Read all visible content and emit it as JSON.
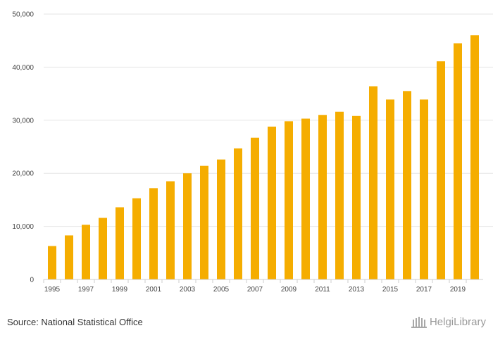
{
  "chart_data": {
    "type": "bar",
    "categories": [
      "1995",
      "1996",
      "1997",
      "1998",
      "1999",
      "2000",
      "2001",
      "2002",
      "2003",
      "2004",
      "2005",
      "2006",
      "2007",
      "2008",
      "2009",
      "2010",
      "2011",
      "2012",
      "2013",
      "2014",
      "2015",
      "2016",
      "2017",
      "2018",
      "2019",
      "2020"
    ],
    "values": [
      6300,
      8300,
      10300,
      11600,
      13600,
      15300,
      17200,
      18500,
      20000,
      21400,
      22600,
      24700,
      26700,
      28800,
      29800,
      30300,
      31000,
      31600,
      30800,
      36400,
      33900,
      35500,
      33900,
      41100,
      44500,
      46000
    ],
    "x_tick_labels": [
      "1995",
      "1997",
      "1999",
      "2001",
      "2003",
      "2005",
      "2007",
      "2009",
      "2011",
      "2013",
      "2015",
      "2017",
      "2019"
    ],
    "y_ticks": [
      0,
      10000,
      20000,
      30000,
      40000,
      50000
    ],
    "y_tick_labels": [
      "0",
      "10,000",
      "20,000",
      "30,000",
      "40,000",
      "50,000"
    ],
    "ylim": [
      0,
      50000
    ],
    "grid": true,
    "bar_color": "#f5ad00",
    "title": "",
    "xlabel": "",
    "ylabel": ""
  },
  "footer": {
    "source": "Source: National Statistical Office",
    "logo_text": "HelgiLibrary"
  }
}
